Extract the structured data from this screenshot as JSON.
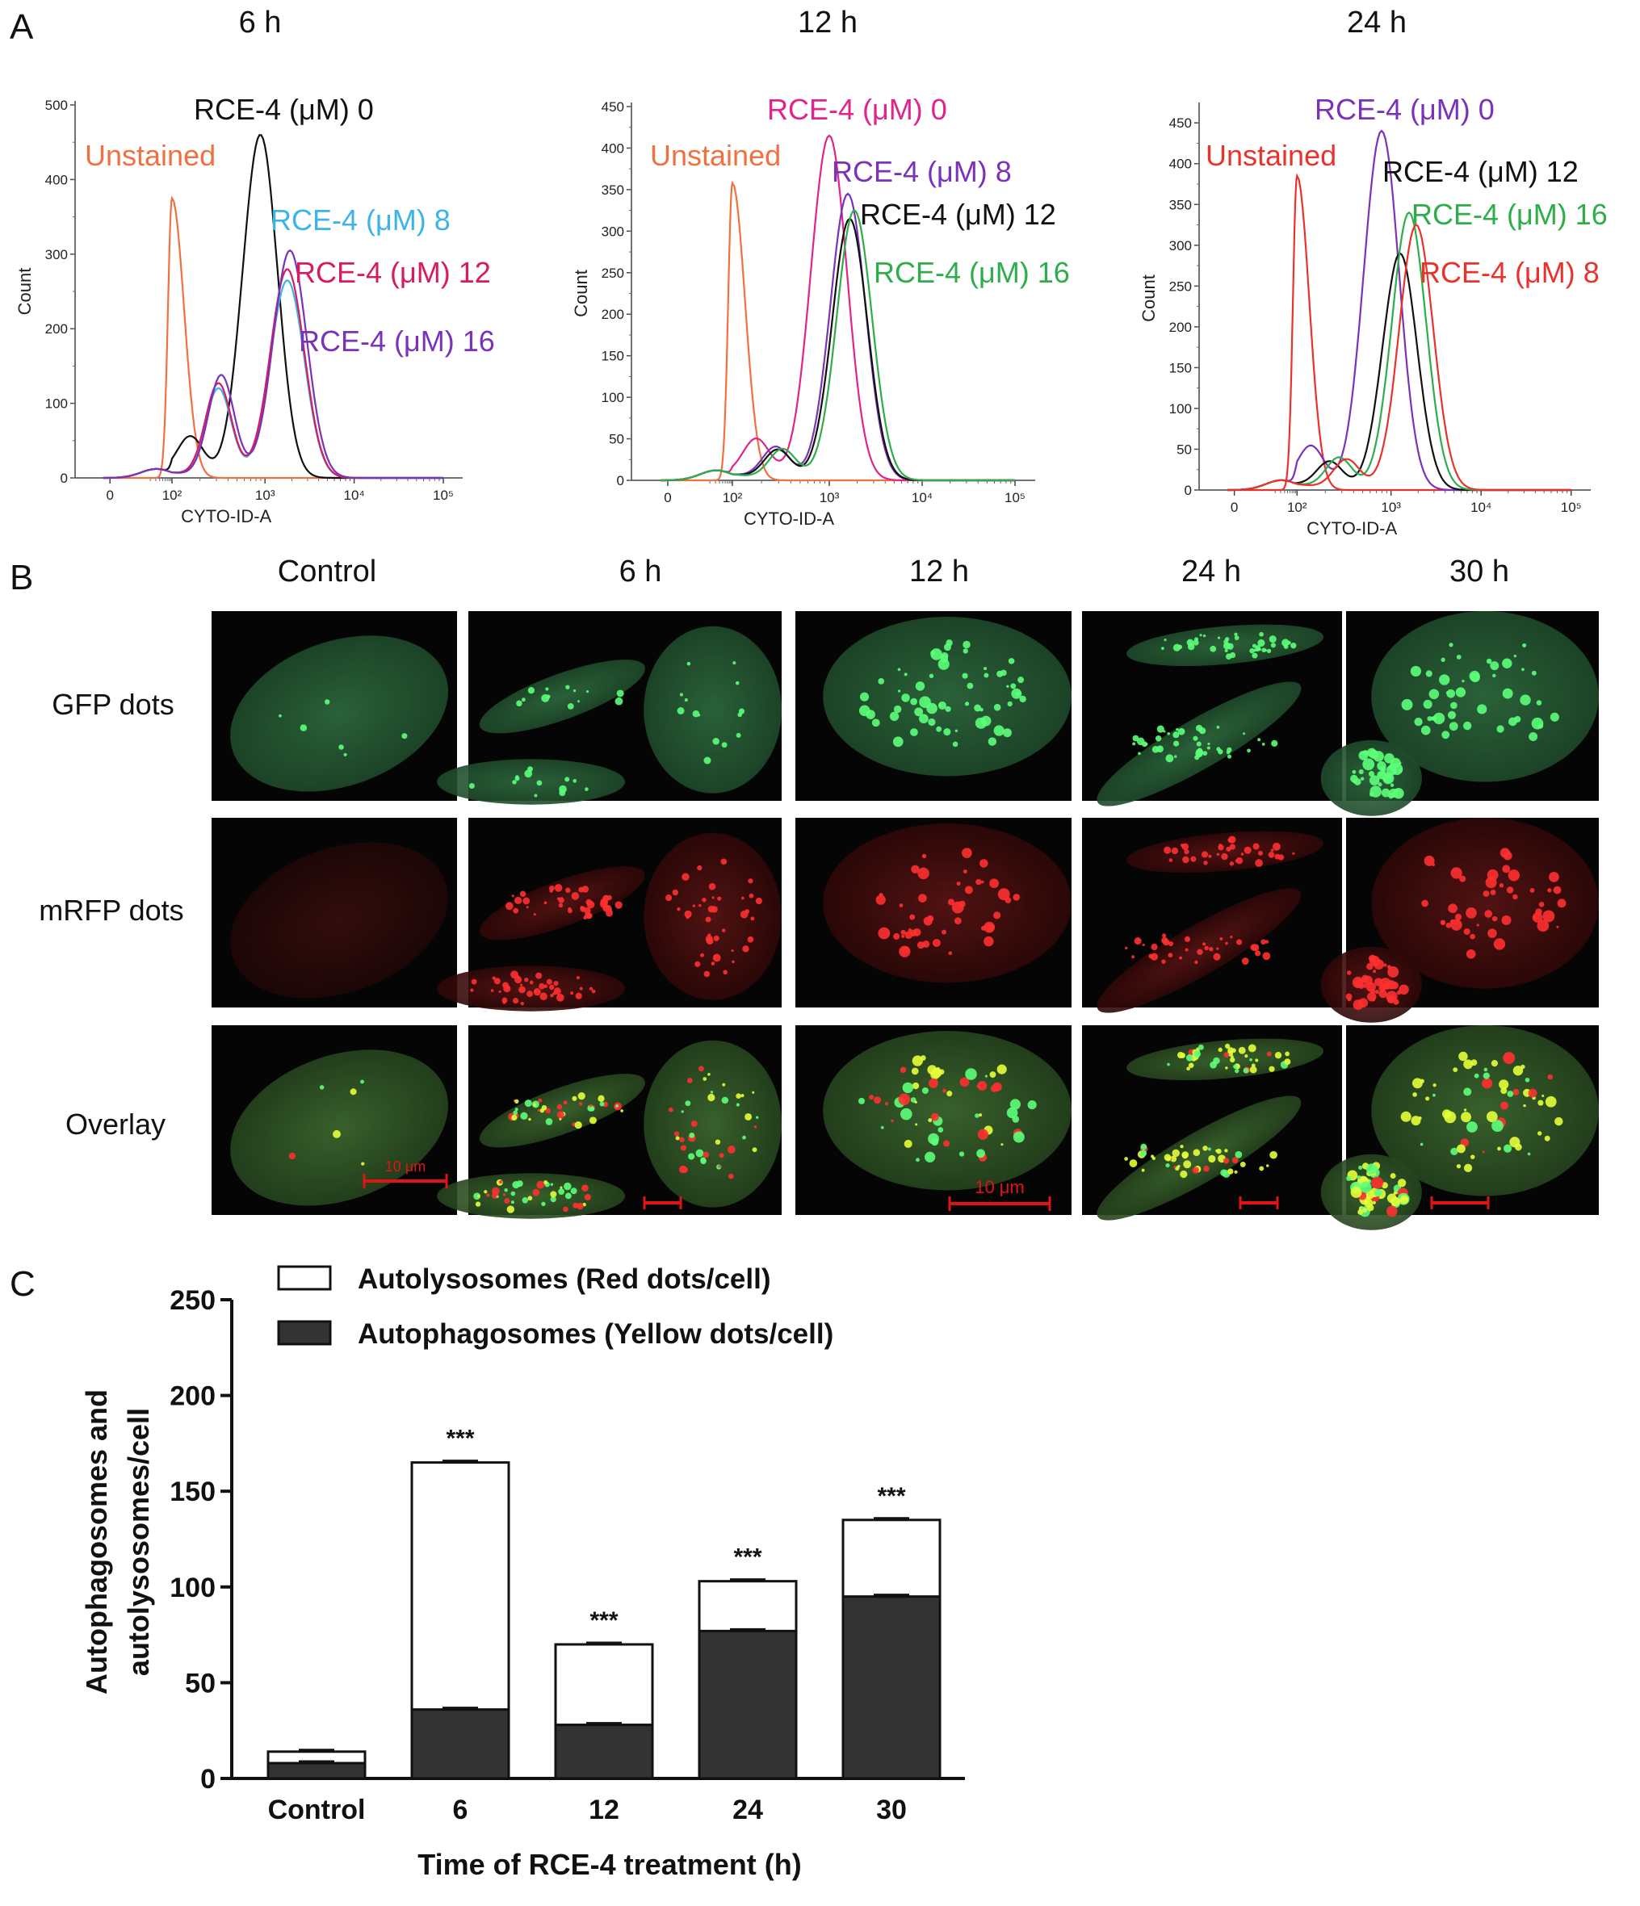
{
  "panels": {
    "a_label": "A",
    "b_label": "B",
    "c_label": "C"
  },
  "micro": {
    "columns": [
      "Control",
      "6 h",
      "12 h",
      "24 h",
      "30 h"
    ],
    "rows": [
      "GFP dots",
      "mRFP dots",
      "Overlay"
    ],
    "scale_label": "10 μm"
  },
  "colors": {
    "unstained": "#f07040",
    "black": "#111111",
    "cyan": "#3cb4e6",
    "crimson": "#d81b60",
    "purple": "#7a32b8",
    "magenta": "#e0248c",
    "green": "#2eae4a",
    "red": "#e8322b",
    "bar_dark": "#333333"
  },
  "chart_data": [
    {
      "type": "line",
      "title": "6 h",
      "xlabel": "CYTO-ID-A",
      "ylabel": "Count",
      "xscale": "biexponential",
      "xticks": [
        "0",
        "10²",
        "10³",
        "10⁴",
        "10⁵"
      ],
      "yticks": [
        "0",
        "100",
        "200",
        "300",
        "400",
        "500"
      ],
      "ylim": [
        0,
        500
      ],
      "series": [
        {
          "name": "Unstained",
          "color": "#f07040",
          "peak_x_log": 2.0,
          "peak_count": 375
        },
        {
          "name": "RCE-4 (μM) 0",
          "color": "#111111",
          "peak_x_log": 2.95,
          "peak_count": 460
        },
        {
          "name": "RCE-4 (μM) 8",
          "color": "#3cb4e6",
          "peak_x_log": 3.25,
          "peak_count": 265
        },
        {
          "name": "RCE-4 (μM) 12",
          "color": "#d81b60",
          "peak_x_log": 3.25,
          "peak_count": 280
        },
        {
          "name": "RCE-4 (μM) 16",
          "color": "#7a32b8",
          "peak_x_log": 3.28,
          "peak_count": 305
        }
      ]
    },
    {
      "type": "line",
      "title": "12 h",
      "xlabel": "CYTO-ID-A",
      "ylabel": "Count",
      "xscale": "biexponential",
      "xticks": [
        "0",
        "10²",
        "10³",
        "10⁴",
        "10⁵"
      ],
      "yticks": [
        "0",
        "50",
        "100",
        "150",
        "200",
        "250",
        "300",
        "350",
        "400",
        "450"
      ],
      "ylim": [
        0,
        450
      ],
      "series": [
        {
          "name": "Unstained",
          "color": "#f07040",
          "peak_x_log": 2.0,
          "peak_count": 358
        },
        {
          "name": "RCE-4 (μM) 0",
          "color": "#e0248c",
          "peak_x_log": 3.0,
          "peak_count": 415
        },
        {
          "name": "RCE-4 (μM) 8",
          "color": "#7a32b8",
          "peak_x_log": 3.2,
          "peak_count": 345
        },
        {
          "name": "RCE-4 (μM) 12",
          "color": "#111111",
          "peak_x_log": 3.22,
          "peak_count": 315
        },
        {
          "name": "RCE-4 (μM) 16",
          "color": "#2eae4a",
          "peak_x_log": 3.27,
          "peak_count": 325
        }
      ]
    },
    {
      "type": "line",
      "title": "24 h",
      "xlabel": "CYTO-ID-A",
      "ylabel": "Count",
      "xscale": "biexponential",
      "xticks": [
        "0",
        "10²",
        "10³",
        "10⁴",
        "10⁵"
      ],
      "yticks": [
        "0",
        "50",
        "100",
        "150",
        "200",
        "250",
        "300",
        "350",
        "400",
        "450"
      ],
      "ylim": [
        0,
        470
      ],
      "series": [
        {
          "name": "Unstained",
          "color": "#e8322b",
          "peak_x_log": 2.0,
          "peak_count": 385
        },
        {
          "name": "RCE-4 (μM) 0",
          "color": "#7a32b8",
          "peak_x_log": 2.9,
          "peak_count": 440
        },
        {
          "name": "RCE-4 (μM) 12",
          "color": "#111111",
          "peak_x_log": 3.1,
          "peak_count": 290
        },
        {
          "name": "RCE-4 (μM) 16",
          "color": "#2eae4a",
          "peak_x_log": 3.2,
          "peak_count": 340
        },
        {
          "name": "RCE-4 (μM) 8",
          "color": "#e8322b",
          "peak_x_log": 3.28,
          "peak_count": 325
        }
      ]
    },
    {
      "type": "bar",
      "stacked": true,
      "categories": [
        "Control",
        "6",
        "12",
        "24",
        "30"
      ],
      "xlabel": "Time of  RCE-4 treatment (h)",
      "ylabel": "Autophagosomes and autolysosomes/cell",
      "ylim": [
        0,
        250
      ],
      "yticks": [
        "0",
        "50",
        "100",
        "150",
        "200",
        "250"
      ],
      "legend_position": "top",
      "series": [
        {
          "name": "Autolysosomes (Red dots/cell)",
          "color": "#ffffff",
          "values": [
            6,
            129,
            42,
            26,
            40
          ]
        },
        {
          "name": "Autophagosomes (Yellow dots/cell)",
          "color": "#333333",
          "values": [
            8,
            36,
            28,
            77,
            95
          ]
        }
      ],
      "annotations": [
        "",
        "***",
        "***",
        "***",
        "***"
      ]
    }
  ]
}
